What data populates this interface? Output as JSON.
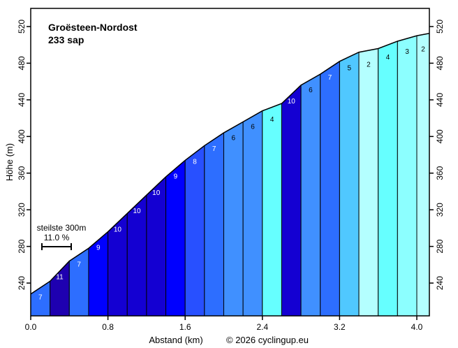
{
  "chart_data": {
    "type": "area",
    "title": "Groësteen-Nordost",
    "subtitle": "233 sap",
    "xlabel": "Abstand (km)",
    "ylabel": "Höhe (m)",
    "copyright": "© 2026 cyclingup.eu",
    "xlim": [
      0,
      4.13
    ],
    "ylim": [
      210,
      540
    ],
    "xticks": [
      "0.0",
      "0.8",
      "1.6",
      "2.4",
      "3.2",
      "4.0"
    ],
    "yticks": [
      "240",
      "280",
      "320",
      "360",
      "400",
      "440",
      "480",
      "520"
    ],
    "grid": false,
    "steepest": {
      "label": "steilste 300m",
      "value": "11.0 %"
    },
    "segment_length_km": 0.2,
    "start_elevation": 228,
    "segments": [
      {
        "x_end": 0.2,
        "gradient": "7"
      },
      {
        "x_end": 0.4,
        "gradient": "11"
      },
      {
        "x_end": 0.6,
        "gradient": "7"
      },
      {
        "x_end": 0.8,
        "gradient": "9"
      },
      {
        "x_end": 1.0,
        "gradient": "10"
      },
      {
        "x_end": 1.2,
        "gradient": "10"
      },
      {
        "x_end": 1.4,
        "gradient": "10"
      },
      {
        "x_end": 1.6,
        "gradient": "9"
      },
      {
        "x_end": 1.8,
        "gradient": "8"
      },
      {
        "x_end": 2.0,
        "gradient": "7"
      },
      {
        "x_end": 2.2,
        "gradient": "6"
      },
      {
        "x_end": 2.4,
        "gradient": "6"
      },
      {
        "x_end": 2.6,
        "gradient": "4"
      },
      {
        "x_end": 2.8,
        "gradient": "10"
      },
      {
        "x_end": 3.0,
        "gradient": "6"
      },
      {
        "x_end": 3.2,
        "gradient": "7"
      },
      {
        "x_end": 3.4,
        "gradient": "5"
      },
      {
        "x_end": 3.6,
        "gradient": "2"
      },
      {
        "x_end": 3.8,
        "gradient": "4"
      },
      {
        "x_end": 4.0,
        "gradient": "3"
      },
      {
        "x_end": 4.13,
        "gradient": "2"
      }
    ],
    "gradient_colors": {
      "2": "#b4ffff",
      "3": "#8cffff",
      "4": "#66ffff",
      "5": "#50c8ff",
      "6": "#4090ff",
      "7": "#2d6eff",
      "8": "#2850ff",
      "9": "#0000ff",
      "10": "#1400d2",
      "11": "#1e00b0"
    }
  }
}
